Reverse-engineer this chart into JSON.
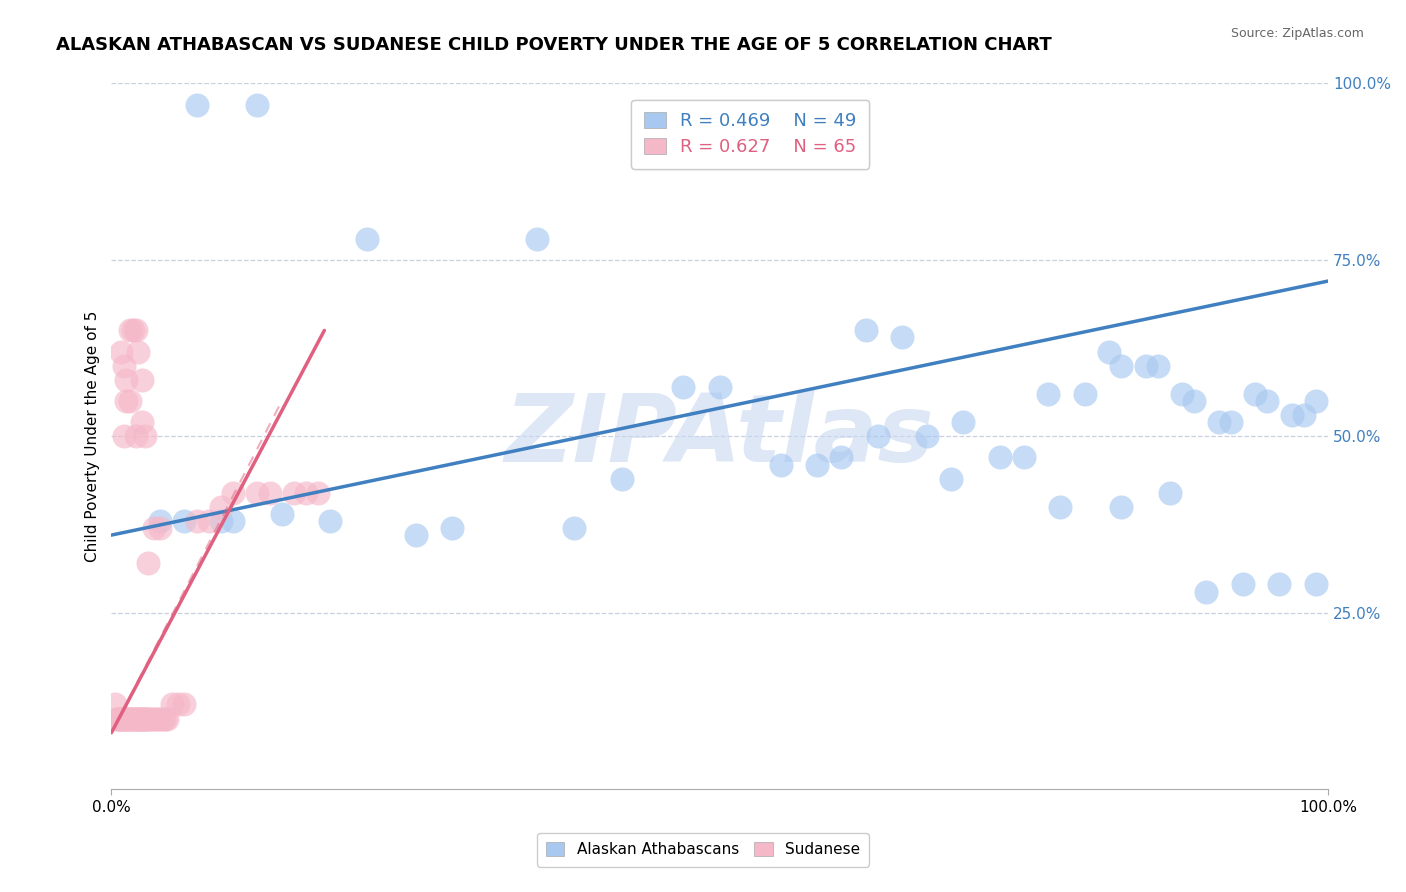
{
  "title": "ALASKAN ATHABASCAN VS SUDANESE CHILD POVERTY UNDER THE AGE OF 5 CORRELATION CHART",
  "source": "Source: ZipAtlas.com",
  "ylabel": "Child Poverty Under the Age of 5",
  "xlim": [
    0,
    1.0
  ],
  "ylim": [
    0,
    1.0
  ],
  "xtick_labels": [
    "0.0%",
    "100.0%"
  ],
  "ytick_right_labels": [
    "25.0%",
    "50.0%",
    "75.0%",
    "100.0%"
  ],
  "ytick_right_values": [
    0.25,
    0.5,
    0.75,
    1.0
  ],
  "legend_labels": [
    "Alaskan Athabascans",
    "Sudanese"
  ],
  "legend_r_n": [
    {
      "R": "0.469",
      "N": "49"
    },
    {
      "R": "0.627",
      "N": "65"
    }
  ],
  "blue_color": "#a8c8f0",
  "pink_color": "#f5b8c8",
  "blue_line_color": "#4080c0",
  "pink_line_color": "#e06080",
  "pink_line_dash": [
    6,
    3
  ],
  "watermark": "ZIPAtlas",
  "watermark_color": "#c8d8f0",
  "grid_color": "#c8d0e0",
  "background_color": "#ffffff",
  "blue_scatter_x": [
    0.07,
    0.12,
    0.21,
    0.35,
    0.47,
    0.5,
    0.62,
    0.65,
    0.67,
    0.7,
    0.75,
    0.77,
    0.8,
    0.82,
    0.83,
    0.85,
    0.86,
    0.88,
    0.89,
    0.91,
    0.92,
    0.94,
    0.95,
    0.97,
    0.98,
    0.99,
    0.04,
    0.06,
    0.09,
    0.1,
    0.14,
    0.18,
    0.25,
    0.28,
    0.38,
    0.42,
    0.55,
    0.58,
    0.6,
    0.63,
    0.69,
    0.73,
    0.78,
    0.83,
    0.87,
    0.9,
    0.93,
    0.96,
    0.99
  ],
  "blue_scatter_y": [
    0.97,
    0.97,
    0.78,
    0.78,
    0.57,
    0.57,
    0.65,
    0.64,
    0.5,
    0.52,
    0.47,
    0.56,
    0.56,
    0.62,
    0.6,
    0.6,
    0.6,
    0.56,
    0.55,
    0.52,
    0.52,
    0.56,
    0.55,
    0.53,
    0.53,
    0.55,
    0.38,
    0.38,
    0.38,
    0.38,
    0.39,
    0.38,
    0.36,
    0.37,
    0.37,
    0.44,
    0.46,
    0.46,
    0.47,
    0.5,
    0.44,
    0.47,
    0.4,
    0.4,
    0.42,
    0.28,
    0.29,
    0.29,
    0.29
  ],
  "pink_scatter_x": [
    0.003,
    0.004,
    0.005,
    0.006,
    0.007,
    0.008,
    0.009,
    0.01,
    0.011,
    0.012,
    0.013,
    0.014,
    0.015,
    0.016,
    0.017,
    0.018,
    0.019,
    0.02,
    0.021,
    0.022,
    0.023,
    0.024,
    0.025,
    0.026,
    0.027,
    0.028,
    0.029,
    0.03,
    0.032,
    0.034,
    0.036,
    0.038,
    0.04,
    0.042,
    0.044,
    0.046,
    0.05,
    0.055,
    0.06,
    0.07,
    0.08,
    0.09,
    0.1,
    0.12,
    0.13,
    0.15,
    0.16,
    0.17,
    0.03,
    0.035,
    0.04,
    0.01,
    0.012,
    0.015,
    0.02,
    0.025,
    0.028,
    0.008,
    0.01,
    0.012,
    0.015,
    0.018,
    0.02,
    0.022,
    0.025
  ],
  "pink_scatter_y": [
    0.12,
    0.1,
    0.1,
    0.1,
    0.1,
    0.1,
    0.1,
    0.1,
    0.1,
    0.1,
    0.1,
    0.1,
    0.1,
    0.1,
    0.1,
    0.1,
    0.1,
    0.1,
    0.1,
    0.1,
    0.1,
    0.1,
    0.1,
    0.1,
    0.1,
    0.1,
    0.1,
    0.1,
    0.1,
    0.1,
    0.1,
    0.1,
    0.1,
    0.1,
    0.1,
    0.1,
    0.12,
    0.12,
    0.12,
    0.38,
    0.38,
    0.4,
    0.42,
    0.42,
    0.42,
    0.42,
    0.42,
    0.42,
    0.32,
    0.37,
    0.37,
    0.5,
    0.55,
    0.55,
    0.5,
    0.52,
    0.5,
    0.62,
    0.6,
    0.58,
    0.65,
    0.65,
    0.65,
    0.62,
    0.58
  ],
  "blue_line_x": [
    0.0,
    1.0
  ],
  "blue_line_y": [
    0.36,
    0.72
  ],
  "pink_line_x": [
    0.0,
    0.175
  ],
  "pink_line_y": [
    0.08,
    0.65
  ],
  "title_fontsize": 13,
  "axis_label_fontsize": 11,
  "tick_fontsize": 11,
  "scatter_size": 300
}
